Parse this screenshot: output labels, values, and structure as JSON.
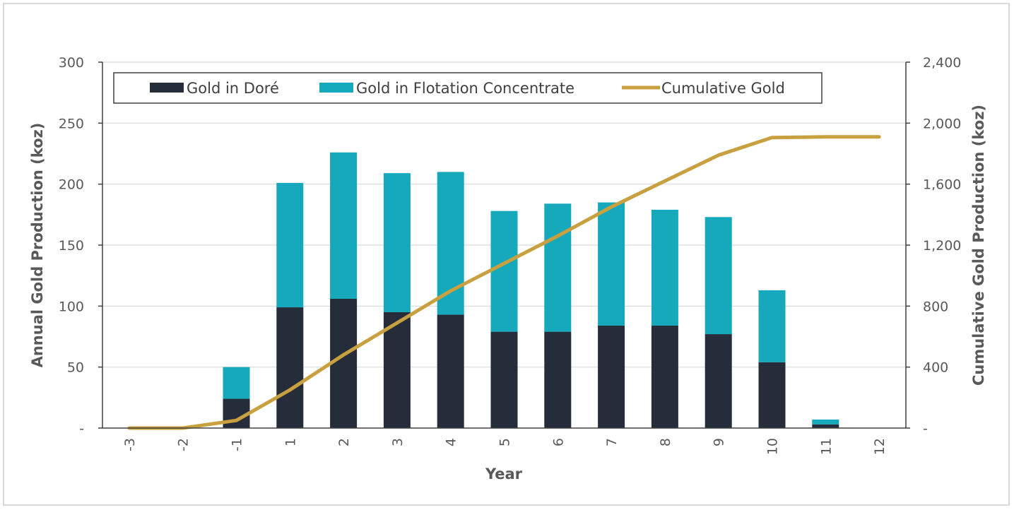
{
  "chart_data": {
    "type": "bar",
    "stacked": true,
    "categories": [
      "-3",
      "-2",
      "-1",
      "1",
      "2",
      "3",
      "4",
      "5",
      "6",
      "7",
      "8",
      "9",
      "10",
      "11",
      "12"
    ],
    "series": [
      {
        "name": "Gold in Doré",
        "type": "bar",
        "axis": "left",
        "color": "#252d3b",
        "values": [
          0,
          0,
          24,
          99,
          106,
          95,
          93,
          79,
          79,
          84,
          84,
          77,
          54,
          3,
          0
        ]
      },
      {
        "name": "Gold in Flotation Concentrate",
        "type": "bar",
        "axis": "left",
        "color": "#15a9bb",
        "values": [
          0,
          0,
          26,
          102,
          120,
          114,
          117,
          99,
          105,
          101,
          95,
          96,
          59,
          4,
          0
        ]
      },
      {
        "name": "Cumulative Gold",
        "type": "line",
        "axis": "right",
        "color": "#c9a03f",
        "values": [
          0,
          0,
          50,
          250,
          480,
          690,
          900,
          1080,
          1260,
          1450,
          1620,
          1790,
          1905,
          1910,
          1910
        ]
      }
    ],
    "xlabel": "Year",
    "ylabel": "Annual Gold Production (koz)",
    "y2label": "Cumulative Gold Production (koz)",
    "ylim": [
      0,
      300
    ],
    "y2lim": [
      0,
      2400
    ],
    "yticks": [
      "-",
      "50",
      "100",
      "150",
      "200",
      "250",
      "300"
    ],
    "y2ticks": [
      "-",
      "400",
      "800",
      "1,200",
      "1,600",
      "2,000",
      "2,400"
    ],
    "grid": true,
    "legend": "top"
  }
}
